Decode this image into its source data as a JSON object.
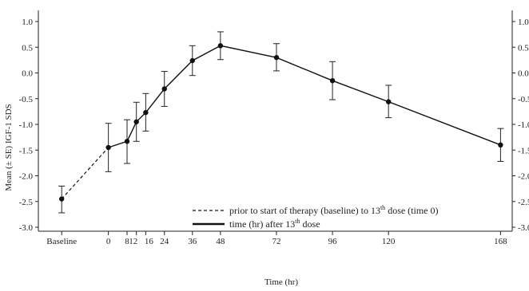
{
  "chart_data": {
    "type": "line",
    "ylabel": "Mean (± SE) IGF-1 SDS",
    "xlabel": "Time (hr)",
    "ylim": [
      -3.0,
      1.0
    ],
    "yticks": [
      "1.0",
      "0.5",
      "0.0",
      "-0.5",
      "-1.0",
      "-1.5",
      "-2.0",
      "-2.5",
      "-3.0"
    ],
    "ytick_values": [
      1.0,
      0.5,
      0.0,
      -0.5,
      -1.0,
      -1.5,
      -2.0,
      -2.5,
      -3.0
    ],
    "xticks": [
      "Baseline",
      "0",
      "8",
      "12",
      "16",
      "24",
      "36",
      "48",
      "72",
      "96",
      "120",
      "168"
    ],
    "xtick_values": [
      -20,
      0,
      8,
      12,
      16,
      24,
      36,
      48,
      72,
      96,
      120,
      168
    ],
    "grid": false,
    "legend_position": "bottom-right",
    "series": [
      {
        "name": "prior to start of therapy (baseline) to 13th dose (time 0)",
        "style": "dashed",
        "x": [
          "Baseline",
          0
        ],
        "y": [
          -2.45,
          -1.45
        ]
      },
      {
        "name": "time (hr) after 13th dose",
        "style": "solid",
        "x": [
          0,
          8,
          12,
          16,
          24,
          36,
          48,
          72,
          96,
          120,
          168
        ],
        "y": [
          -1.45,
          -1.33,
          -0.95,
          -0.77,
          -0.31,
          0.24,
          0.53,
          0.3,
          -0.15,
          -0.56,
          -1.4
        ]
      }
    ],
    "points": [
      {
        "x": "Baseline",
        "y": -2.45,
        "se_low": -2.72,
        "se_high": -2.2
      },
      {
        "x": 0,
        "y": -1.45,
        "se_low": -1.92,
        "se_high": -0.98
      },
      {
        "x": 8,
        "y": -1.33,
        "se_low": -1.76,
        "se_high": -0.91
      },
      {
        "x": 12,
        "y": -0.95,
        "se_low": -1.33,
        "se_high": -0.57
      },
      {
        "x": 16,
        "y": -0.77,
        "se_low": -1.13,
        "se_high": -0.4
      },
      {
        "x": 24,
        "y": -0.31,
        "se_low": -0.65,
        "se_high": 0.03
      },
      {
        "x": 36,
        "y": 0.24,
        "se_low": -0.05,
        "se_high": 0.53
      },
      {
        "x": 48,
        "y": 0.53,
        "se_low": 0.26,
        "se_high": 0.8
      },
      {
        "x": 72,
        "y": 0.3,
        "se_low": 0.04,
        "se_high": 0.57
      },
      {
        "x": 96,
        "y": -0.15,
        "se_low": -0.52,
        "se_high": 0.22
      },
      {
        "x": 120,
        "y": -0.56,
        "se_low": -0.87,
        "se_high": -0.24
      },
      {
        "x": 168,
        "y": -1.4,
        "se_low": -1.72,
        "se_high": -1.08
      }
    ],
    "legend": [
      {
        "label_main": "prior to start of therapy  (baseline)  to 13",
        "label_sup": "th",
        "label_end": " dose (time 0)",
        "style": "dashed"
      },
      {
        "label_main": "time (hr) after 13",
        "label_sup": "th",
        "label_end": " dose",
        "style": "solid"
      }
    ]
  }
}
